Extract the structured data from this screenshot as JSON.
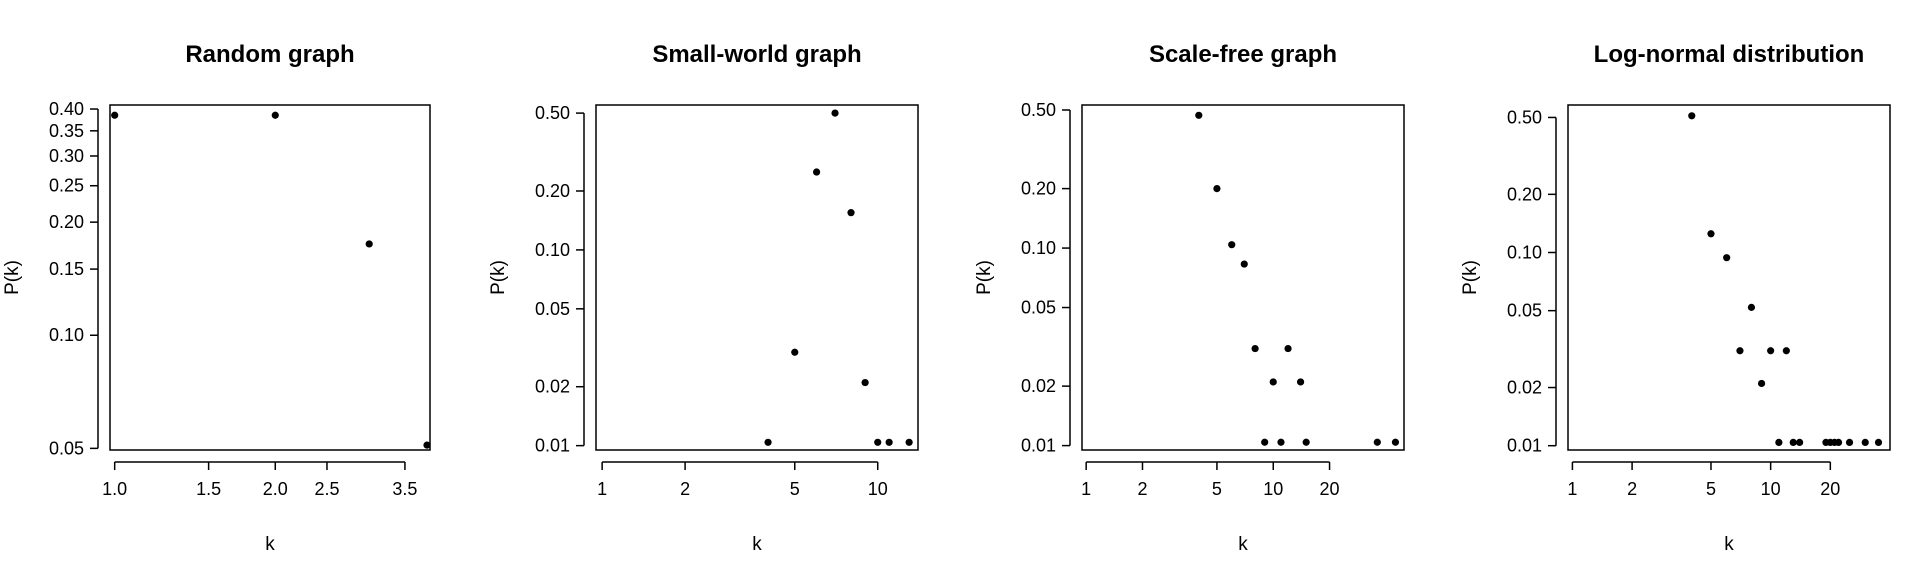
{
  "chart_data": [
    {
      "type": "scatter",
      "title": "Random graph",
      "xlabel": "k",
      "ylabel": "P(k)",
      "xscale": "log",
      "yscale": "log",
      "xlim": [
        0.98,
        3.9
      ],
      "ylim": [
        0.0495,
        0.41
      ],
      "xticks": [
        1.0,
        1.5,
        2.0,
        2.5,
        3.5
      ],
      "xtick_labels": [
        "1.0",
        "1.5",
        "2.0",
        "2.5",
        "3.5"
      ],
      "yticks": [
        0.05,
        0.1,
        0.15,
        0.2,
        0.25,
        0.3,
        0.35,
        0.4
      ],
      "ytick_labels": [
        "0.05",
        "0.10",
        "0.15",
        "0.20",
        "0.25",
        "0.30",
        "0.35",
        "0.40"
      ],
      "points": [
        [
          1,
          0.385
        ],
        [
          2,
          0.385
        ],
        [
          3,
          0.175
        ],
        [
          3.85,
          0.051
        ]
      ]
    },
    {
      "type": "scatter",
      "title": "Small-world graph",
      "xlabel": "k",
      "ylabel": "P(k)",
      "xscale": "log",
      "yscale": "log",
      "xlim": [
        0.95,
        14
      ],
      "ylim": [
        0.0095,
        0.55
      ],
      "xticks": [
        1,
        2,
        5,
        10
      ],
      "xtick_labels": [
        "1",
        "2",
        "5",
        "10"
      ],
      "yticks": [
        0.01,
        0.02,
        0.05,
        0.1,
        0.2,
        0.5
      ],
      "ytick_labels": [
        "0.01",
        "0.02",
        "0.05",
        "0.10",
        "0.20",
        "0.50"
      ],
      "points": [
        [
          4,
          0.0104
        ],
        [
          5,
          0.03
        ],
        [
          6,
          0.25
        ],
        [
          7,
          0.5
        ],
        [
          8,
          0.155
        ],
        [
          9,
          0.021
        ],
        [
          10,
          0.0104
        ],
        [
          11,
          0.0104
        ],
        [
          13,
          0.0104
        ]
      ]
    },
    {
      "type": "scatter",
      "title": "Scale-free graph",
      "xlabel": "k",
      "ylabel": "P(k)",
      "xscale": "log",
      "yscale": "log",
      "xlim": [
        0.95,
        50
      ],
      "ylim": [
        0.0095,
        0.53
      ],
      "xticks": [
        1,
        2,
        5,
        10,
        20
      ],
      "xtick_labels": [
        "1",
        "2",
        "5",
        "10",
        "20"
      ],
      "yticks": [
        0.01,
        0.02,
        0.05,
        0.1,
        0.2,
        0.5
      ],
      "ytick_labels": [
        "0.01",
        "0.02",
        "0.05",
        "0.10",
        "0.20",
        "0.50"
      ],
      "points": [
        [
          4,
          0.47
        ],
        [
          5,
          0.2
        ],
        [
          6,
          0.104
        ],
        [
          7,
          0.083
        ],
        [
          8,
          0.031
        ],
        [
          9,
          0.0104
        ],
        [
          10,
          0.021
        ],
        [
          11,
          0.0104
        ],
        [
          12,
          0.031
        ],
        [
          14,
          0.021
        ],
        [
          15,
          0.0104
        ],
        [
          36,
          0.0104
        ],
        [
          45,
          0.0104
        ]
      ]
    },
    {
      "type": "scatter",
      "title": "Log-normal distribution",
      "xlabel": "k",
      "ylabel": "P(k)",
      "xscale": "log",
      "yscale": "log",
      "xlim": [
        0.95,
        40
      ],
      "ylim": [
        0.0095,
        0.58
      ],
      "xticks": [
        1,
        2,
        5,
        10,
        20
      ],
      "xtick_labels": [
        "1",
        "2",
        "5",
        "10",
        "20"
      ],
      "yticks": [
        0.01,
        0.02,
        0.05,
        0.1,
        0.2,
        0.5
      ],
      "ytick_labels": [
        "0.01",
        "0.02",
        "0.05",
        "0.10",
        "0.20",
        "0.50"
      ],
      "points": [
        [
          4,
          0.51
        ],
        [
          5,
          0.125
        ],
        [
          6,
          0.094
        ],
        [
          7,
          0.031
        ],
        [
          8,
          0.052
        ],
        [
          9,
          0.021
        ],
        [
          10,
          0.031
        ],
        [
          11,
          0.0104
        ],
        [
          12,
          0.031
        ],
        [
          13,
          0.0104
        ],
        [
          14,
          0.0104
        ],
        [
          19,
          0.0104
        ],
        [
          20,
          0.0104
        ],
        [
          21,
          0.0104
        ],
        [
          22,
          0.0104
        ],
        [
          25,
          0.0104
        ],
        [
          30,
          0.0104
        ],
        [
          35,
          0.0104
        ]
      ]
    }
  ]
}
